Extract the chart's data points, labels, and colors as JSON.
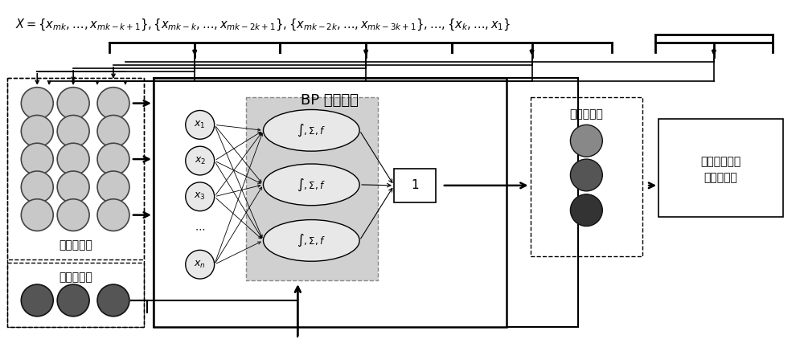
{
  "bp_label": "BP 神经网络",
  "normal_group": "正常样本组",
  "fault_group": "故障样本组",
  "perf_label": "性能偏移量",
  "svm_line1": "支持向量机故",
  "svm_line2": "障分类模型",
  "output_label": "1",
  "background": "#ffffff",
  "node_fc": "#c8c8c8",
  "node_ec": "#444444",
  "dark_fc": "#555555",
  "darker_fc": "#333333",
  "darkest_fc": "#222222",
  "hid_box_fill": "#d0d0d0",
  "ellipse_fc": "#e8e8e8"
}
